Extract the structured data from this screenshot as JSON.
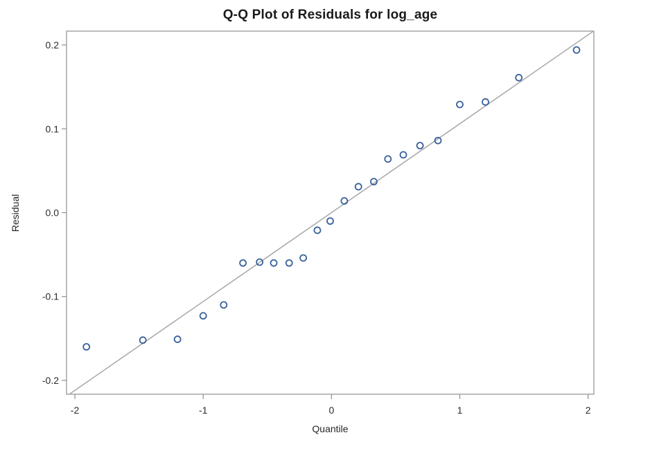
{
  "chart_data": {
    "type": "scatter",
    "title": "Q-Q Plot of Residuals for log_age",
    "xlabel": "Quantile",
    "ylabel": "Residual",
    "xlim": [
      -2.065,
      2.045
    ],
    "ylim": [
      -0.2165,
      0.2165
    ],
    "x_ticks": [
      -2,
      -1,
      0,
      1,
      2
    ],
    "x_tick_labels": [
      "-2",
      "-1",
      "0",
      "1",
      "2"
    ],
    "y_ticks": [
      0.2,
      0.1,
      0.0,
      -0.1,
      -0.2
    ],
    "y_tick_labels": [
      "0.2",
      "0.1",
      "0.0",
      "-0.1",
      "-0.2"
    ],
    "grid": false,
    "legend": null,
    "reference_line": {
      "x1": -2.04,
      "y1": -0.2162,
      "x2": 2.043,
      "y2": 0.2166
    },
    "points": [
      [
        -1.91,
        -0.16
      ],
      [
        -1.47,
        -0.152
      ],
      [
        -1.2,
        -0.151
      ],
      [
        -1.0,
        -0.123
      ],
      [
        -0.84,
        -0.11
      ],
      [
        -0.69,
        -0.06
      ],
      [
        -0.56,
        -0.059
      ],
      [
        -0.45,
        -0.06
      ],
      [
        -0.33,
        -0.06
      ],
      [
        -0.22,
        -0.054
      ],
      [
        -0.11,
        -0.021
      ],
      [
        -0.01,
        -0.01
      ],
      [
        0.1,
        0.014
      ],
      [
        0.21,
        0.031
      ],
      [
        0.33,
        0.037
      ],
      [
        0.44,
        0.064
      ],
      [
        0.56,
        0.069
      ],
      [
        0.69,
        0.08
      ],
      [
        0.83,
        0.086
      ],
      [
        1.0,
        0.129
      ],
      [
        1.2,
        0.132
      ],
      [
        1.46,
        0.161
      ],
      [
        1.91,
        0.194
      ]
    ],
    "colors": {
      "marker_stroke": "#37609c",
      "reference_line": "#ababab",
      "plot_border": "#8f8f8f",
      "tick_mark": "#8f8f8f",
      "tick_label": "#2b2b2b",
      "background": "#ffffff"
    },
    "marker": {
      "shape": "open-circle",
      "radius": 4.5,
      "stroke_width": 1.8
    }
  }
}
